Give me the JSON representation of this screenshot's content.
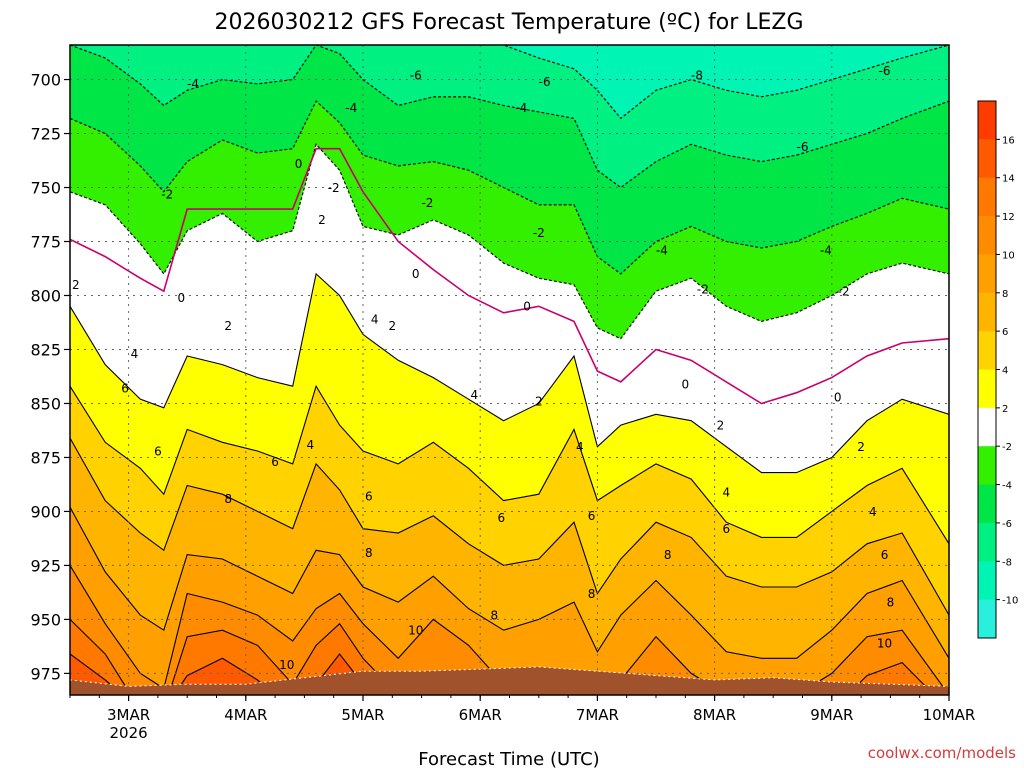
{
  "chart_data": {
    "type": "heatmap",
    "title": "2026030212 GFS Forecast Temperature (ºC) for LEZG",
    "xlabel": "Forecast Time (UTC)",
    "ylabel": "",
    "credit": "coolwx.com/models",
    "x_ticks": [
      "3MAR",
      "4MAR",
      "5MAR",
      "6MAR",
      "7MAR",
      "8MAR",
      "9MAR",
      "10MAR"
    ],
    "x_tick_year": "2026",
    "x_tick_values_days": [
      3,
      4,
      5,
      6,
      7,
      8,
      9,
      10
    ],
    "xlim_days": [
      2.5,
      10.0
    ],
    "y_ticks": [
      700,
      725,
      750,
      775,
      800,
      825,
      850,
      875,
      900,
      925,
      950,
      975
    ],
    "ylim": [
      985,
      684
    ],
    "grid": true,
    "colorbar": {
      "labels": [
        "16",
        "14",
        "12",
        "10",
        "8",
        "6",
        "4",
        "2",
        "-2",
        "-4",
        "-6",
        "-8",
        "-10"
      ],
      "bands": [
        {
          "range": [
            16,
            18
          ],
          "color": "#ff3c00"
        },
        {
          "range": [
            14,
            16
          ],
          "color": "#ff5a00"
        },
        {
          "range": [
            12,
            14
          ],
          "color": "#ff7800"
        },
        {
          "range": [
            10,
            12
          ],
          "color": "#ff8c00"
        },
        {
          "range": [
            8,
            10
          ],
          "color": "#ffa000"
        },
        {
          "range": [
            6,
            8
          ],
          "color": "#ffb400"
        },
        {
          "range": [
            4,
            6
          ],
          "color": "#ffd200"
        },
        {
          "range": [
            2,
            4
          ],
          "color": "#ffff00"
        },
        {
          "range": [
            -2,
            2
          ],
          "color": "#ffffff"
        },
        {
          "range": [
            -4,
            -2
          ],
          "color": "#32f000"
        },
        {
          "range": [
            -6,
            -4
          ],
          "color": "#00e646"
        },
        {
          "range": [
            -8,
            -6
          ],
          "color": "#00f082"
        },
        {
          "range": [
            -10,
            -8
          ],
          "color": "#00f5b4"
        },
        {
          "range": [
            -12,
            -10
          ],
          "color": "#28f0dc"
        }
      ]
    },
    "ground_color": "#a0522d",
    "zero_line_color": "#c8006e",
    "contour_labels": [
      {
        "day": 3.45,
        "p": 803,
        "text": "0"
      },
      {
        "day": 3.33,
        "p": 755,
        "text": "-2"
      },
      {
        "day": 2.55,
        "p": 797,
        "text": "2"
      },
      {
        "day": 3.55,
        "p": 704,
        "text": "-4"
      },
      {
        "day": 4.75,
        "p": 752,
        "text": "-2"
      },
      {
        "day": 4.45,
        "p": 741,
        "text": "0"
      },
      {
        "day": 4.65,
        "p": 767,
        "text": "2"
      },
      {
        "day": 4.9,
        "p": 715,
        "text": "-4"
      },
      {
        "day": 5.45,
        "p": 700,
        "text": "-6"
      },
      {
        "day": 6.35,
        "p": 715,
        "text": "-4"
      },
      {
        "day": 6.55,
        "p": 703,
        "text": "-6"
      },
      {
        "day": 7.85,
        "p": 700,
        "text": "-8"
      },
      {
        "day": 9.45,
        "p": 698,
        "text": "-6"
      },
      {
        "day": 8.75,
        "p": 733,
        "text": "-6"
      },
      {
        "day": 8.95,
        "p": 781,
        "text": "-4"
      },
      {
        "day": 7.55,
        "p": 781,
        "text": "-4"
      },
      {
        "day": 5.55,
        "p": 759,
        "text": "-2"
      },
      {
        "day": 6.5,
        "p": 773,
        "text": "-2"
      },
      {
        "day": 7.9,
        "p": 799,
        "text": "-2"
      },
      {
        "day": 9.1,
        "p": 800,
        "text": "-2"
      },
      {
        "day": 5.45,
        "p": 792,
        "text": "0"
      },
      {
        "day": 6.4,
        "p": 807,
        "text": "0"
      },
      {
        "day": 7.75,
        "p": 843,
        "text": "0"
      },
      {
        "day": 9.05,
        "p": 849,
        "text": "0"
      },
      {
        "day": 3.85,
        "p": 816,
        "text": "2"
      },
      {
        "day": 5.25,
        "p": 816,
        "text": "2"
      },
      {
        "day": 6.5,
        "p": 851,
        "text": "2"
      },
      {
        "day": 8.05,
        "p": 862,
        "text": "2"
      },
      {
        "day": 9.25,
        "p": 872,
        "text": "2"
      },
      {
        "day": 3.05,
        "p": 829,
        "text": "4"
      },
      {
        "day": 5.1,
        "p": 813,
        "text": "4"
      },
      {
        "day": 4.55,
        "p": 871,
        "text": "4"
      },
      {
        "day": 5.95,
        "p": 848,
        "text": "4"
      },
      {
        "day": 6.85,
        "p": 872,
        "text": "4"
      },
      {
        "day": 8.1,
        "p": 893,
        "text": "4"
      },
      {
        "day": 9.35,
        "p": 902,
        "text": "4"
      },
      {
        "day": 2.97,
        "p": 845,
        "text": "6"
      },
      {
        "day": 3.25,
        "p": 874,
        "text": "6"
      },
      {
        "day": 4.25,
        "p": 879,
        "text": "6"
      },
      {
        "day": 5.05,
        "p": 895,
        "text": "6"
      },
      {
        "day": 6.18,
        "p": 905,
        "text": "6"
      },
      {
        "day": 6.95,
        "p": 904,
        "text": "6"
      },
      {
        "day": 8.1,
        "p": 910,
        "text": "6"
      },
      {
        "day": 9.45,
        "p": 922,
        "text": "6"
      },
      {
        "day": 3.85,
        "p": 896,
        "text": "8"
      },
      {
        "day": 5.05,
        "p": 921,
        "text": "8"
      },
      {
        "day": 6.12,
        "p": 950,
        "text": "8"
      },
      {
        "day": 6.95,
        "p": 940,
        "text": "8"
      },
      {
        "day": 7.6,
        "p": 922,
        "text": "8"
      },
      {
        "day": 9.5,
        "p": 944,
        "text": "8"
      },
      {
        "day": 4.35,
        "p": 973,
        "text": "10"
      },
      {
        "day": 5.45,
        "p": 957,
        "text": "10"
      },
      {
        "day": 9.45,
        "p": 963,
        "text": "10"
      }
    ]
  }
}
